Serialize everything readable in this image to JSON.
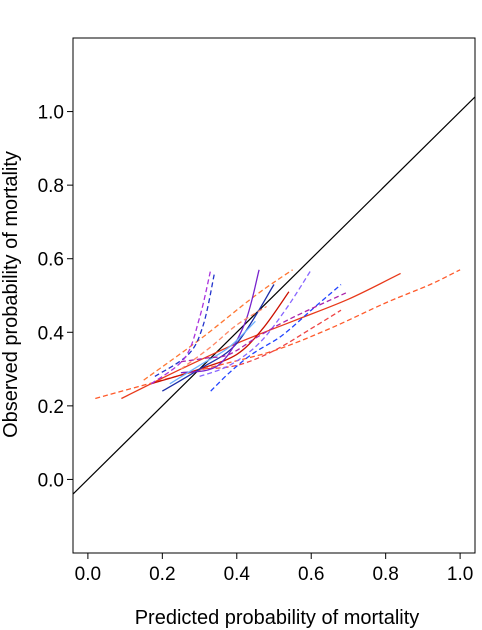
{
  "chart_data": {
    "type": "line",
    "title": "",
    "xlabel": "Predicted probability of mortality",
    "ylabel": "Observed probability of mortality",
    "xlim": [
      -0.04,
      1.04
    ],
    "ylim": [
      -0.2,
      1.2
    ],
    "x_ticks": [
      "0.0",
      "0.2",
      "0.4",
      "0.6",
      "0.8",
      "1.0"
    ],
    "y_ticks": [
      "0.0",
      "0.2",
      "0.4",
      "0.6",
      "0.8",
      "1.0"
    ],
    "grid": false,
    "legend": "none",
    "series": [
      {
        "color": "#000000",
        "dash": "solid",
        "points": [
          [
            -0.04,
            -0.04
          ],
          [
            1.04,
            1.04
          ]
        ]
      },
      {
        "color": "#e8391a",
        "dash": "solid",
        "points": [
          [
            0.09,
            0.22
          ],
          [
            0.25,
            0.3
          ],
          [
            0.4,
            0.37
          ],
          [
            0.55,
            0.43
          ],
          [
            0.7,
            0.49
          ],
          [
            0.84,
            0.56
          ]
        ]
      },
      {
        "color": "#ff5a2a",
        "dash": "dashed",
        "points": [
          [
            0.02,
            0.22
          ],
          [
            0.2,
            0.27
          ],
          [
            0.35,
            0.31
          ],
          [
            0.5,
            0.35
          ],
          [
            0.65,
            0.41
          ],
          [
            0.8,
            0.48
          ],
          [
            0.92,
            0.53
          ],
          [
            1.0,
            0.57
          ]
        ]
      },
      {
        "color": "#ff7733",
        "dash": "dashed",
        "points": [
          [
            0.15,
            0.27
          ],
          [
            0.3,
            0.38
          ],
          [
            0.45,
            0.5
          ],
          [
            0.55,
            0.57
          ]
        ]
      },
      {
        "color": "#cc1100",
        "dash": "solid",
        "points": [
          [
            0.17,
            0.26
          ],
          [
            0.3,
            0.3
          ],
          [
            0.4,
            0.34
          ],
          [
            0.47,
            0.41
          ],
          [
            0.54,
            0.51
          ]
        ]
      },
      {
        "color": "#ee4444",
        "dash": "dashed",
        "points": [
          [
            0.3,
            0.3
          ],
          [
            0.4,
            0.31
          ],
          [
            0.5,
            0.35
          ],
          [
            0.6,
            0.41
          ],
          [
            0.68,
            0.46
          ]
        ]
      },
      {
        "color": "#1c2fa8",
        "dash": "solid",
        "points": [
          [
            0.2,
            0.24
          ],
          [
            0.3,
            0.3
          ],
          [
            0.4,
            0.37
          ],
          [
            0.5,
            0.53
          ]
        ]
      },
      {
        "color": "#7722cc",
        "dash": "solid",
        "points": [
          [
            0.25,
            0.29
          ],
          [
            0.35,
            0.31
          ],
          [
            0.42,
            0.42
          ],
          [
            0.46,
            0.57
          ]
        ]
      },
      {
        "color": "#6bb0ff",
        "dash": "solid",
        "points": [
          [
            0.22,
            0.26
          ],
          [
            0.3,
            0.31
          ],
          [
            0.38,
            0.36
          ],
          [
            0.45,
            0.43
          ]
        ]
      },
      {
        "color": "#2233cc",
        "dash": "dashed",
        "points": [
          [
            0.18,
            0.28
          ],
          [
            0.27,
            0.34
          ],
          [
            0.31,
            0.42
          ],
          [
            0.34,
            0.56
          ]
        ]
      },
      {
        "color": "#aa33dd",
        "dash": "dashed",
        "points": [
          [
            0.17,
            0.26
          ],
          [
            0.26,
            0.33
          ],
          [
            0.3,
            0.44
          ],
          [
            0.33,
            0.57
          ]
        ]
      },
      {
        "color": "#2244ff",
        "dash": "dashed",
        "points": [
          [
            0.33,
            0.24
          ],
          [
            0.38,
            0.29
          ],
          [
            0.44,
            0.34
          ],
          [
            0.52,
            0.39
          ],
          [
            0.6,
            0.46
          ],
          [
            0.68,
            0.53
          ]
        ]
      },
      {
        "color": "#8866ff",
        "dash": "dashed",
        "points": [
          [
            0.3,
            0.28
          ],
          [
            0.38,
            0.31
          ],
          [
            0.46,
            0.37
          ],
          [
            0.53,
            0.46
          ],
          [
            0.6,
            0.57
          ]
        ]
      },
      {
        "color": "#aa22aa",
        "dash": "dashed",
        "points": [
          [
            0.25,
            0.32
          ],
          [
            0.32,
            0.33
          ],
          [
            0.38,
            0.34
          ],
          [
            0.46,
            0.39
          ],
          [
            0.55,
            0.44
          ],
          [
            0.7,
            0.51
          ]
        ]
      },
      {
        "color": "#ff8866",
        "dash": "dashed",
        "points": [
          [
            0.25,
            0.3
          ],
          [
            0.33,
            0.36
          ],
          [
            0.4,
            0.42
          ],
          [
            0.48,
            0.47
          ]
        ]
      }
    ]
  }
}
